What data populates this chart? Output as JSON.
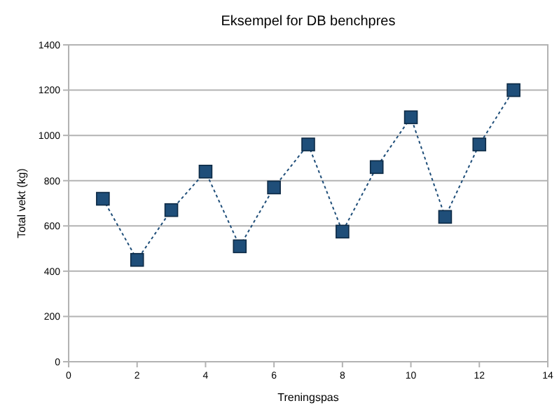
{
  "chart_data": {
    "type": "line",
    "title": "Eksempel for DB benchpres",
    "xlabel": "Treningspas",
    "ylabel": "Total vekt (kg)",
    "x": [
      1,
      2,
      3,
      4,
      5,
      6,
      7,
      8,
      9,
      10,
      11,
      12,
      13
    ],
    "series": [
      {
        "color": "#1f4e79",
        "values": [
          720,
          450,
          670,
          840,
          510,
          770,
          960,
          575,
          860,
          1080,
          640,
          960,
          1200
        ]
      }
    ],
    "xlim": [
      0,
      14
    ],
    "xticks": [
      0,
      2,
      4,
      6,
      8,
      10,
      12,
      14
    ],
    "ylim": [
      0,
      1400
    ],
    "yticks": [
      0,
      200,
      400,
      600,
      800,
      1000,
      1200,
      1400
    ],
    "grid": "y",
    "marker": "square",
    "line_style": "dashed"
  }
}
